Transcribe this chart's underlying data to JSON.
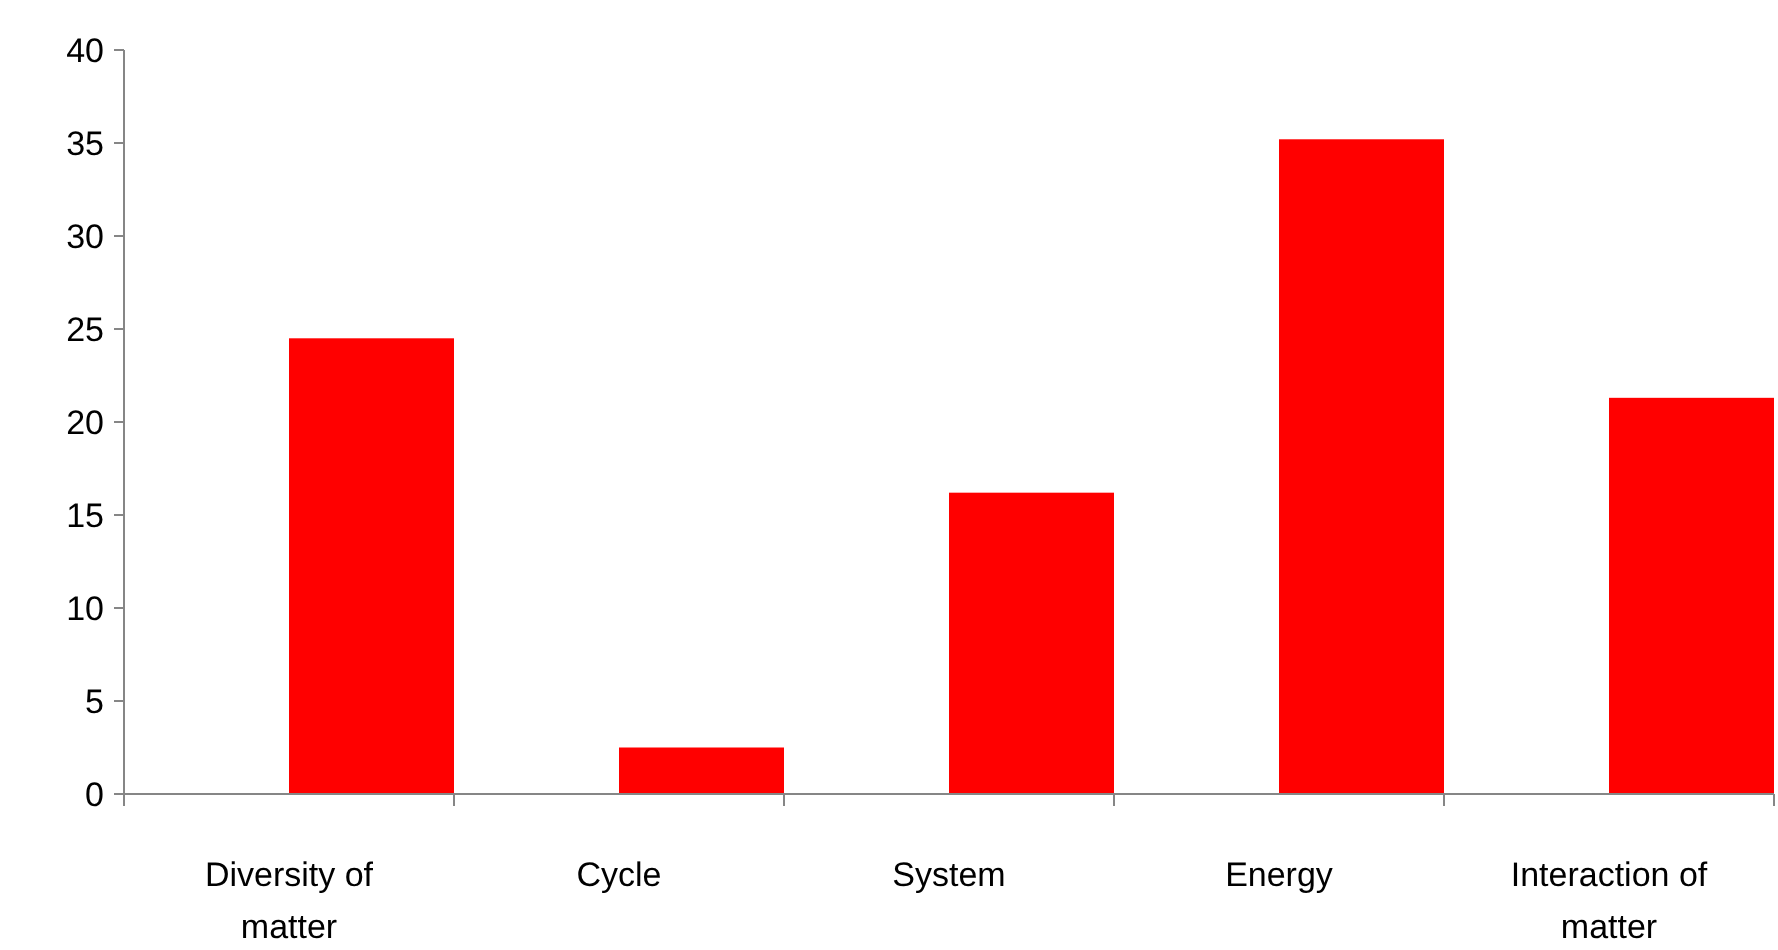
{
  "chart_data": {
    "type": "bar",
    "categories": [
      "Diversity of matter",
      "Cycle",
      "System",
      "Energy",
      "Interaction of matter"
    ],
    "values": [
      24.5,
      2.5,
      16.2,
      35.2,
      21.3
    ],
    "color": "#ff0000",
    "ylim": [
      0,
      40
    ],
    "yticks": [
      0,
      5,
      10,
      15,
      20,
      25,
      30,
      35,
      40
    ]
  }
}
